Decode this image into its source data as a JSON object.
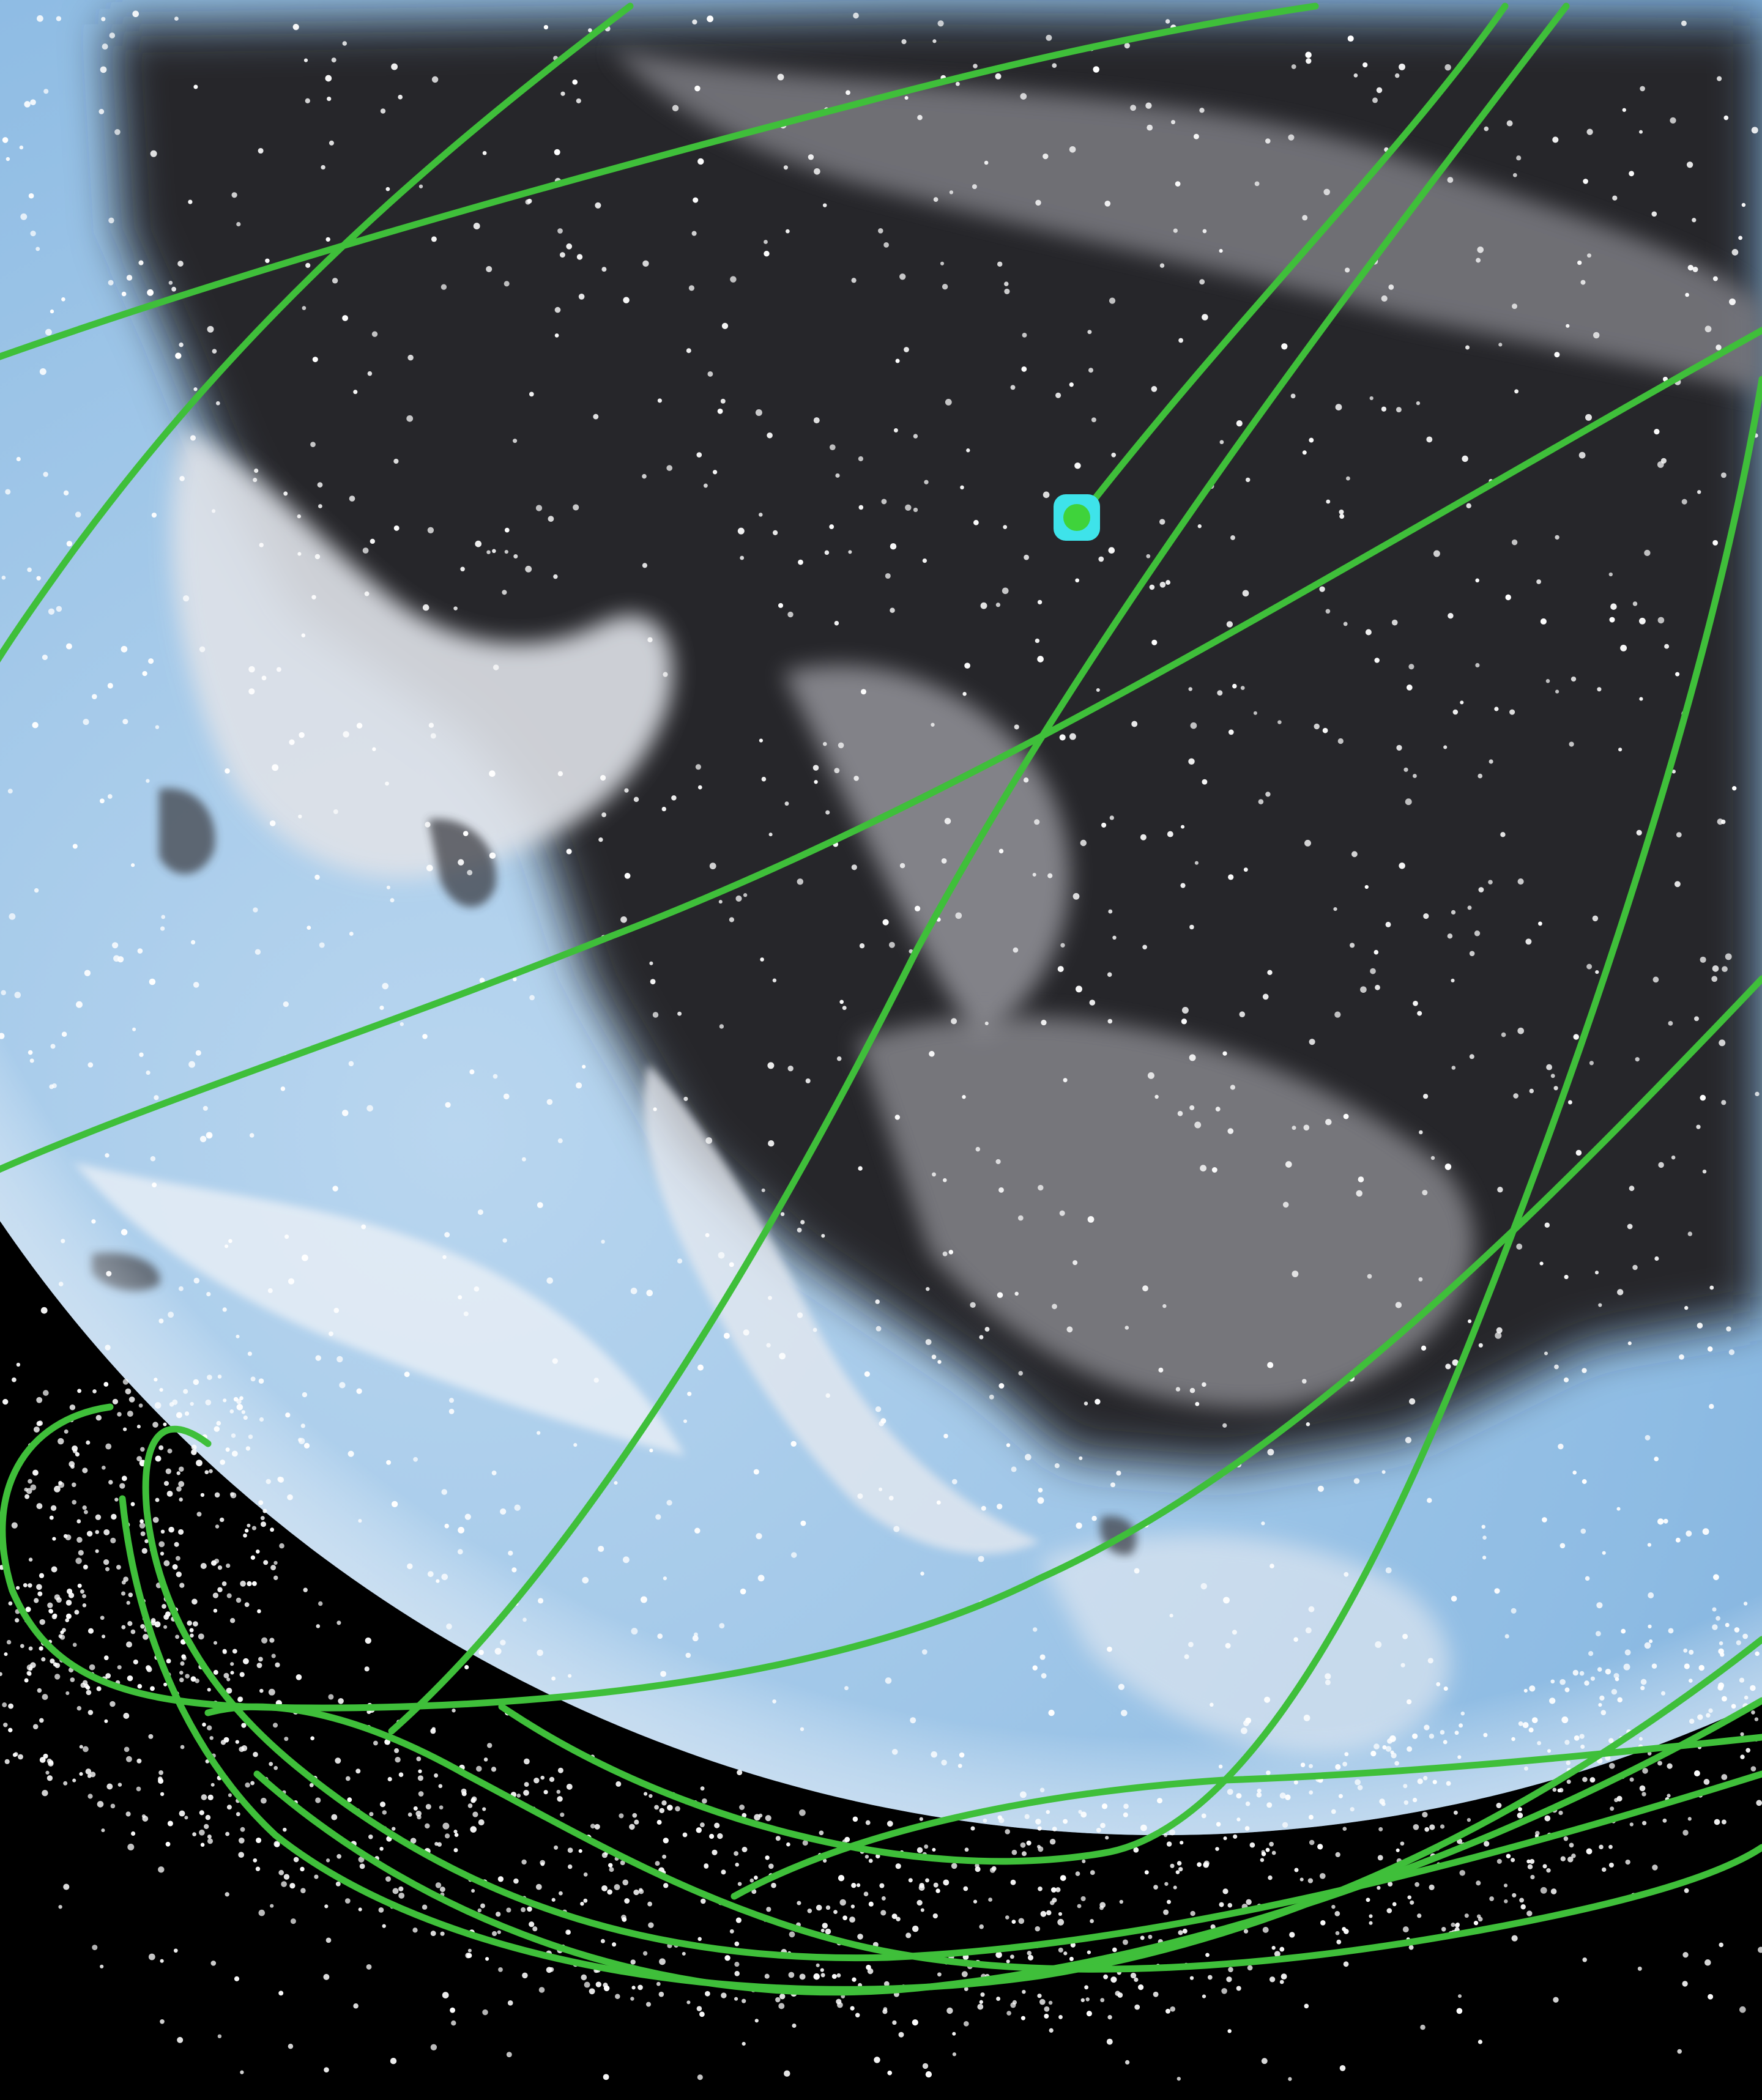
{
  "colors": {
    "space": "#000000",
    "accent_bar": "#d026e6",
    "ocean_light": "#a9cbe8",
    "ocean_mid": "#7fb0dd",
    "ocean_deep": "#5c93c8",
    "cloud_dark": "#2b2b2e",
    "cloud_mid": "#6d6d72",
    "cloud_light": "#d9dce2",
    "orbit_track": "#3fbf3a",
    "satellite_marker": "#3ee3ea",
    "satellite_core": "#3fd33b",
    "debris_dot": "#ffffff"
  },
  "scene": {
    "description_icon": "globe-icon",
    "orbit_count": 12,
    "selected_satellite_icon": "satellite-marker-icon"
  }
}
